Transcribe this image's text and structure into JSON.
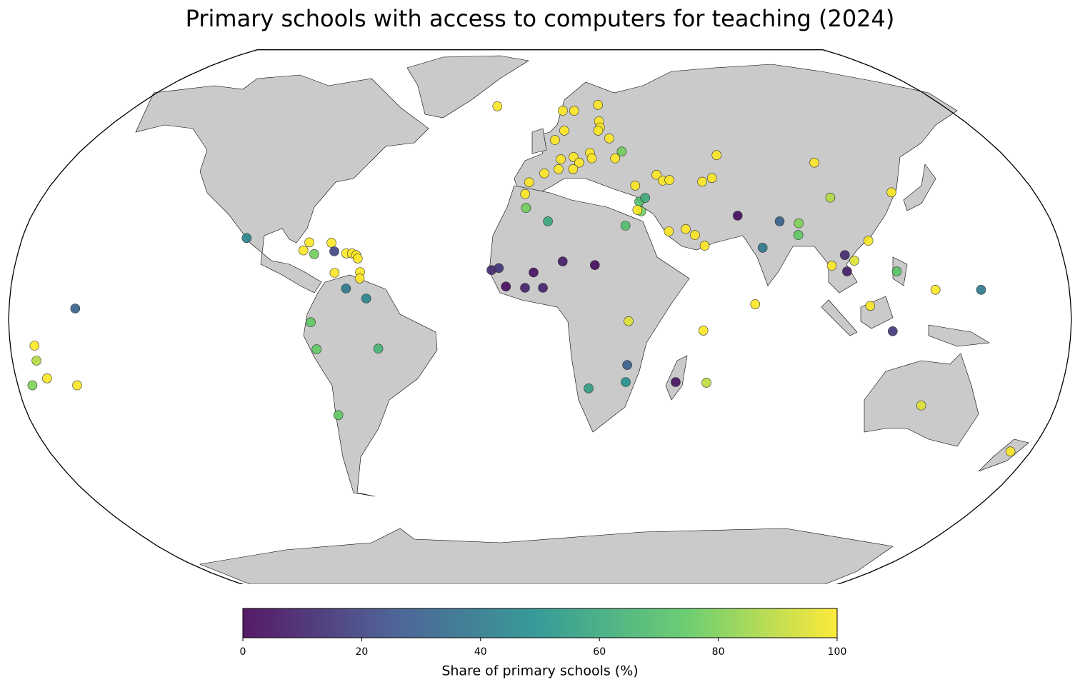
{
  "chart_data": {
    "type": "map",
    "title": "Primary schools with access to computers for teaching (2024)",
    "colorbar_label": "Share of primary schools (%)",
    "colors": [
      "#440154",
      "#3b528b",
      "#21918c",
      "#5ec962",
      "#fde725"
    ],
    "clim": [
      0,
      100
    ],
    "cticks": [
      0,
      20,
      40,
      60,
      80,
      100
    ],
    "lon": [
      -19,
      10,
      15,
      26,
      25,
      25,
      24,
      10,
      6,
      28,
      8,
      13,
      19.5,
      20,
      29,
      32,
      7,
      15,
      12.5,
      1.6,
      -4,
      -5.4,
      -5,
      35,
      43.6,
      45.5,
      48,
      35.7,
      38,
      36,
      34.7,
      30,
      2.8,
      45,
      51,
      54,
      57,
      68.6,
      60,
      64,
      105,
      105,
      128,
      70,
      84.4,
      91,
      90,
      77,
      114,
      105,
      108,
      100,
      105,
      122,
      112,
      119.6,
      134.5,
      150,
      133,
      172.6,
      73,
      55.4,
      57.3,
      46.7,
      29.8,
      29.5,
      16.8,
      30,
      18.8,
      7.8,
      -2.2,
      -16.6,
      -14.1,
      -11.6,
      -5.1,
      1,
      -102,
      -80,
      -81.7,
      -72.3,
      -71,
      -77.8,
      -66.8,
      -64.8,
      -63.3,
      -62.7,
      -61.5,
      -61.5,
      -70.2,
      -66,
      -59,
      -77.7,
      -76,
      -55,
      -70.9,
      -157.6,
      -171.8,
      -171.8,
      -169.4,
      -175,
      -159.6
    ],
    "lat": [
      65,
      63.5,
      63.5,
      65.5,
      60,
      58,
      57,
      57,
      54,
      54.5,
      48,
      48.7,
      50,
      48.3,
      48.3,
      50.4,
      45,
      47,
      45,
      43.7,
      41,
      37.5,
      33.3,
      40,
      43.3,
      41.5,
      41.7,
      35.2,
      36.3,
      32.3,
      32.7,
      28,
      29.3,
      26.3,
      27,
      25.2,
      22,
      49.3,
      41.2,
      42.3,
      47,
      36.4,
      38,
      31,
      29.3,
      28.7,
      25.2,
      21.4,
      23.5,
      19.2,
      17.5,
      16,
      14.3,
      14.3,
      4,
      -3.6,
      8.8,
      8.8,
      -25.8,
      -39.6,
      4.5,
      -3.4,
      -19,
      -18.8,
      -13.7,
      -18.8,
      -20.7,
      -0.6,
      16.2,
      17.3,
      14,
      14.7,
      15.3,
      9.8,
      9.4,
      9.4,
      24.3,
      23,
      20.6,
      22.9,
      20.3,
      19.5,
      19.7,
      19.7,
      19.2,
      18.2,
      14.1,
      12.2,
      13.9,
      9.2,
      6.2,
      -0.9,
      -9,
      -8.8,
      -28.7,
      3.2,
      -7.9,
      -12.4,
      -17.7,
      -19.8,
      -19.8
    ],
    "values": [
      100,
      100,
      100,
      100,
      100,
      100,
      100,
      100,
      100,
      100,
      100,
      100,
      100,
      100,
      100,
      78,
      100,
      100,
      100,
      100,
      100,
      100,
      78,
      100,
      100,
      100,
      100,
      70,
      62,
      78,
      100,
      70,
      60,
      100,
      100,
      100,
      100,
      100,
      100,
      100,
      100,
      88,
      100,
      3,
      30,
      80,
      75,
      40,
      100,
      12,
      95,
      100,
      8,
      72,
      100,
      15,
      100,
      40,
      95,
      100,
      100,
      100,
      90,
      5,
      30,
      50,
      55,
      95,
      3,
      8,
      5,
      12,
      15,
      3,
      10,
      10,
      45,
      100,
      100,
      100,
      20,
      78,
      100,
      100,
      100,
      100,
      100,
      100,
      100,
      40,
      45,
      75,
      75,
      65,
      75,
      30,
      100,
      88,
      100,
      80,
      100
    ]
  }
}
